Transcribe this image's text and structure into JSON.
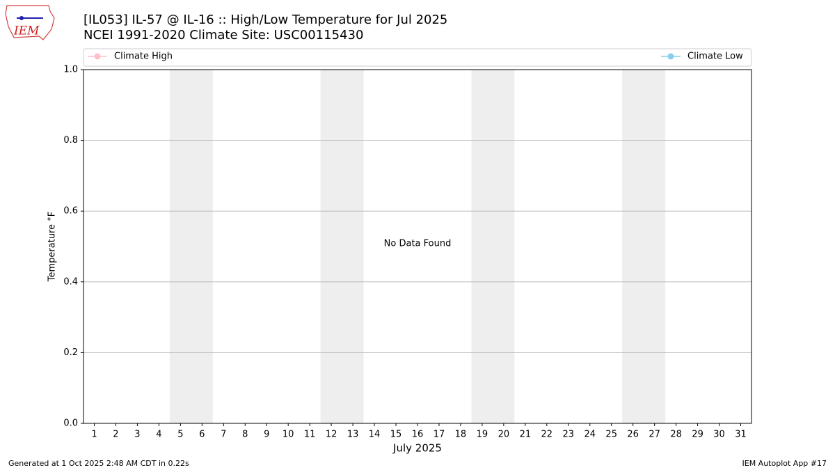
{
  "chart_data": {
    "type": "line",
    "title": "[IL053] IL-57 @ IL-16 :: High/Low Temperature for Jul 2025",
    "subtitle": "NCEI 1991-2020 Climate Site: USC00115430",
    "logo_text": "IEM",
    "xlabel": "July 2025",
    "ylabel": "Temperature °F",
    "annotation": "No Data Found",
    "footer_left": "Generated at 1 Oct 2025 2:48 AM CDT in 0.22s",
    "footer_right": "IEM Autoplot App #17",
    "x": [
      1,
      2,
      3,
      4,
      5,
      6,
      7,
      8,
      9,
      10,
      11,
      12,
      13,
      14,
      15,
      16,
      17,
      18,
      19,
      20,
      21,
      22,
      23,
      24,
      25,
      26,
      27,
      28,
      29,
      30,
      31
    ],
    "series": [
      {
        "name": "Climate High",
        "color": "#ffc0cb",
        "values": [
          null,
          null,
          null,
          null,
          null,
          null,
          null,
          null,
          null,
          null,
          null,
          null,
          null,
          null,
          null,
          null,
          null,
          null,
          null,
          null,
          null,
          null,
          null,
          null,
          null,
          null,
          null,
          null,
          null,
          null,
          null
        ]
      },
      {
        "name": "Climate Low",
        "color": "#87ceeb",
        "values": [
          null,
          null,
          null,
          null,
          null,
          null,
          null,
          null,
          null,
          null,
          null,
          null,
          null,
          null,
          null,
          null,
          null,
          null,
          null,
          null,
          null,
          null,
          null,
          null,
          null,
          null,
          null,
          null,
          null,
          null,
          null
        ]
      }
    ],
    "xlim": [
      0.5,
      31.5
    ],
    "xticks": [
      1,
      2,
      3,
      4,
      5,
      6,
      7,
      8,
      9,
      10,
      11,
      12,
      13,
      14,
      15,
      16,
      17,
      18,
      19,
      20,
      21,
      22,
      23,
      24,
      25,
      26,
      27,
      28,
      29,
      30,
      31
    ],
    "ylim": [
      0,
      1
    ],
    "yticks": [
      {
        "value": 0,
        "label": "0.0"
      },
      0.2,
      0.4,
      0.6,
      0.8,
      {
        "value": 1,
        "label": "1.0"
      }
    ],
    "shaded_x": [
      [
        4.5,
        6.5
      ],
      [
        11.5,
        13.5
      ],
      [
        18.5,
        20.5
      ],
      [
        25.5,
        27.5
      ]
    ],
    "shade_color": "#eeeeee",
    "grid": true
  }
}
